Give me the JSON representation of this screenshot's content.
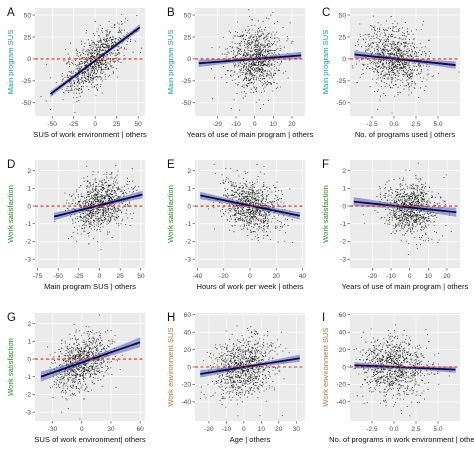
{
  "figure": {
    "colors": {
      "points": "#000000",
      "fit_line": "#0b0f3a",
      "ci_band": "#5a5fc4",
      "reference_line": "#e8241c",
      "panel_background": "#ebebeb",
      "grid": "#ffffff",
      "tick_text": "#4d4d4d",
      "ylabel_teal": "#1aa39a",
      "ylabel_green": "#228b22",
      "ylabel_brown": "#b8743c"
    }
  },
  "chart_data": [
    {
      "letter": "A",
      "type": "scatter",
      "xlabel": "SUS of work environment | others",
      "ylabel": "Main program SUS",
      "ylabel_color": "teal",
      "xlim": [
        -70,
        58
      ],
      "ylim": [
        -65,
        58
      ],
      "xticks": [
        -50,
        -25,
        0,
        25,
        50
      ],
      "yticks": [
        -50,
        -25,
        0,
        25,
        50
      ],
      "ytick_labels": [
        "-50",
        "-25",
        "0",
        "25",
        "50"
      ],
      "reference_y": 0,
      "n_points": 900,
      "point_cloud": {
        "x_center": 0,
        "x_spread": 18,
        "y_spread": 14
      },
      "fit": {
        "x": [
          -52,
          52
        ],
        "y": [
          -40,
          36
        ]
      },
      "ci_halfwidth": 2.5
    },
    {
      "letter": "B",
      "type": "scatter",
      "xlabel": "Years of use of main program | others",
      "ylabel": "Main program SUS",
      "ylabel_color": "teal",
      "xlim": [
        -32,
        27
      ],
      "ylim": [
        -65,
        58
      ],
      "xticks": [
        -20,
        -10,
        0,
        10,
        20
      ],
      "yticks": [
        -50,
        -25,
        0,
        25,
        50
      ],
      "ytick_labels": [
        "-50",
        "-25",
        "0",
        "25",
        "50"
      ],
      "reference_y": 0,
      "n_points": 900,
      "point_cloud": {
        "x_center": 0,
        "x_spread": 7,
        "y_spread": 18
      },
      "fit": {
        "x": [
          -30,
          25
        ],
        "y": [
          -5,
          4
        ]
      },
      "ci_halfwidth": 3
    },
    {
      "letter": "C",
      "type": "scatter",
      "xlabel": "No. of programs used | others",
      "ylabel": "Main program SUS",
      "ylabel_color": "teal",
      "xlim": [
        -5,
        7.5
      ],
      "ylim": [
        -65,
        58
      ],
      "xticks": [
        -2.5,
        0,
        2.5,
        5
      ],
      "xtick_labels": [
        "-2.5",
        "0.0",
        "2.5",
        "5.0"
      ],
      "yticks": [
        -50,
        -25,
        0,
        25,
        50
      ],
      "ytick_labels": [
        "-50",
        "-25",
        "0",
        "25",
        "50"
      ],
      "reference_y": 0,
      "n_points": 900,
      "point_cloud": {
        "x_center": 0,
        "x_spread": 1.8,
        "y_spread": 18
      },
      "fit": {
        "x": [
          -4.5,
          7
        ],
        "y": [
          5,
          -7
        ]
      },
      "ci_halfwidth": 3
    },
    {
      "letter": "D",
      "type": "scatter",
      "xlabel": "Main program SUS | others",
      "ylabel": "Work satisfaction",
      "ylabel_color": "green",
      "xlim": [
        -78,
        55
      ],
      "ylim": [
        -3.5,
        2.6
      ],
      "xticks": [
        -75,
        -50,
        -25,
        0,
        25,
        50
      ],
      "yticks": [
        -3,
        -2,
        -1,
        0,
        1,
        2
      ],
      "ytick_labels": [
        "-3",
        "-2",
        "-1",
        "0",
        "1",
        "2"
      ],
      "reference_y": 0,
      "n_points": 900,
      "point_cloud": {
        "x_center": 0,
        "x_spread": 17,
        "y_spread": 0.75
      },
      "fit": {
        "x": [
          -55,
          52
        ],
        "y": [
          -0.6,
          0.65
        ]
      },
      "ci_halfwidth": 0.15
    },
    {
      "letter": "E",
      "type": "scatter",
      "xlabel": "Hours of work per week | others",
      "ylabel": "Work satisfaction",
      "ylabel_color": "green",
      "xlim": [
        -42,
        42
      ],
      "ylim": [
        -3.5,
        2.6
      ],
      "xticks": [
        -40,
        -20,
        0,
        20,
        40
      ],
      "yticks": [
        -3,
        -2,
        -1,
        0,
        1,
        2
      ],
      "ytick_labels": [
        "-3",
        "-2",
        "-1",
        "0",
        "1",
        "2"
      ],
      "reference_y": 0,
      "n_points": 900,
      "point_cloud": {
        "x_center": 0,
        "x_spread": 11,
        "y_spread": 0.75
      },
      "fit": {
        "x": [
          -38,
          38
        ],
        "y": [
          0.6,
          -0.55
        ]
      },
      "ci_halfwidth": 0.15
    },
    {
      "letter": "F",
      "type": "scatter",
      "xlabel": "Years of use of main program | others",
      "ylabel": "Work satisfaction",
      "ylabel_color": "green",
      "xlim": [
        -32,
        27
      ],
      "ylim": [
        -3.5,
        2.6
      ],
      "xticks": [
        -20,
        -10,
        0,
        10,
        20
      ],
      "yticks": [
        -3,
        -2,
        -1,
        0,
        1,
        2
      ],
      "ytick_labels": [
        "-3",
        "-2",
        "-1",
        "0",
        "1",
        "2"
      ],
      "reference_y": 0,
      "n_points": 900,
      "point_cloud": {
        "x_center": 0,
        "x_spread": 7,
        "y_spread": 0.75
      },
      "fit": {
        "x": [
          -30,
          25
        ],
        "y": [
          0.25,
          -0.35
        ]
      },
      "ci_halfwidth": 0.18
    },
    {
      "letter": "G",
      "type": "scatter",
      "xlabel": "SUS of work environment| others",
      "ylabel": "Work satisfaction",
      "ylabel_color": "green",
      "xlim": [
        -48,
        65
      ],
      "ylim": [
        -3.5,
        2.6
      ],
      "xticks": [
        -30,
        0,
        30,
        60
      ],
      "yticks": [
        -3,
        -2,
        -1,
        0,
        1,
        2
      ],
      "ytick_labels": [
        "-3",
        "-2",
        "-1",
        "0",
        "1",
        "2"
      ],
      "reference_y": 0,
      "n_points": 900,
      "point_cloud": {
        "x_center": 0,
        "x_spread": 14,
        "y_spread": 0.75
      },
      "fit": {
        "x": [
          -42,
          60
        ],
        "y": [
          -1.0,
          0.95
        ]
      },
      "ci_halfwidth": 0.2
    },
    {
      "letter": "H",
      "type": "scatter",
      "xlabel": "Age | others",
      "ylabel": "Work environment SUS",
      "ylabel_color": "brown",
      "xlim": [
        -28,
        35
      ],
      "ylim": [
        -62,
        62
      ],
      "xticks": [
        -20,
        -10,
        0,
        10,
        20,
        30
      ],
      "yticks": [
        -40,
        -20,
        0,
        20,
        40,
        60
      ],
      "ytick_labels": [
        "-40",
        "-20",
        "0",
        "20",
        "40",
        "60"
      ],
      "reference_y": 0,
      "n_points": 900,
      "point_cloud": {
        "x_center": 0,
        "x_spread": 9,
        "y_spread": 18
      },
      "fit": {
        "x": [
          -25,
          32
        ],
        "y": [
          -8,
          10
        ]
      },
      "ci_halfwidth": 3
    },
    {
      "letter": "I",
      "type": "scatter",
      "xlabel": "No. of programs in work environment | others",
      "ylabel": "Work environment SUS",
      "ylabel_color": "brown",
      "xlim": [
        -5,
        7.5
      ],
      "ylim": [
        -62,
        62
      ],
      "xticks": [
        -2.5,
        0,
        2.5,
        5
      ],
      "xtick_labels": [
        "-2.5",
        "0.0",
        "2.5",
        "5.0"
      ],
      "yticks": [
        -40,
        -20,
        0,
        20,
        40,
        60
      ],
      "ytick_labels": [
        "-40",
        "-20",
        "0",
        "20",
        "40",
        "60"
      ],
      "reference_y": 0,
      "n_points": 900,
      "point_cloud": {
        "x_center": 0,
        "x_spread": 1.8,
        "y_spread": 18
      },
      "fit": {
        "x": [
          -4.5,
          7
        ],
        "y": [
          2,
          -3
        ]
      },
      "ci_halfwidth": 2.5
    }
  ]
}
